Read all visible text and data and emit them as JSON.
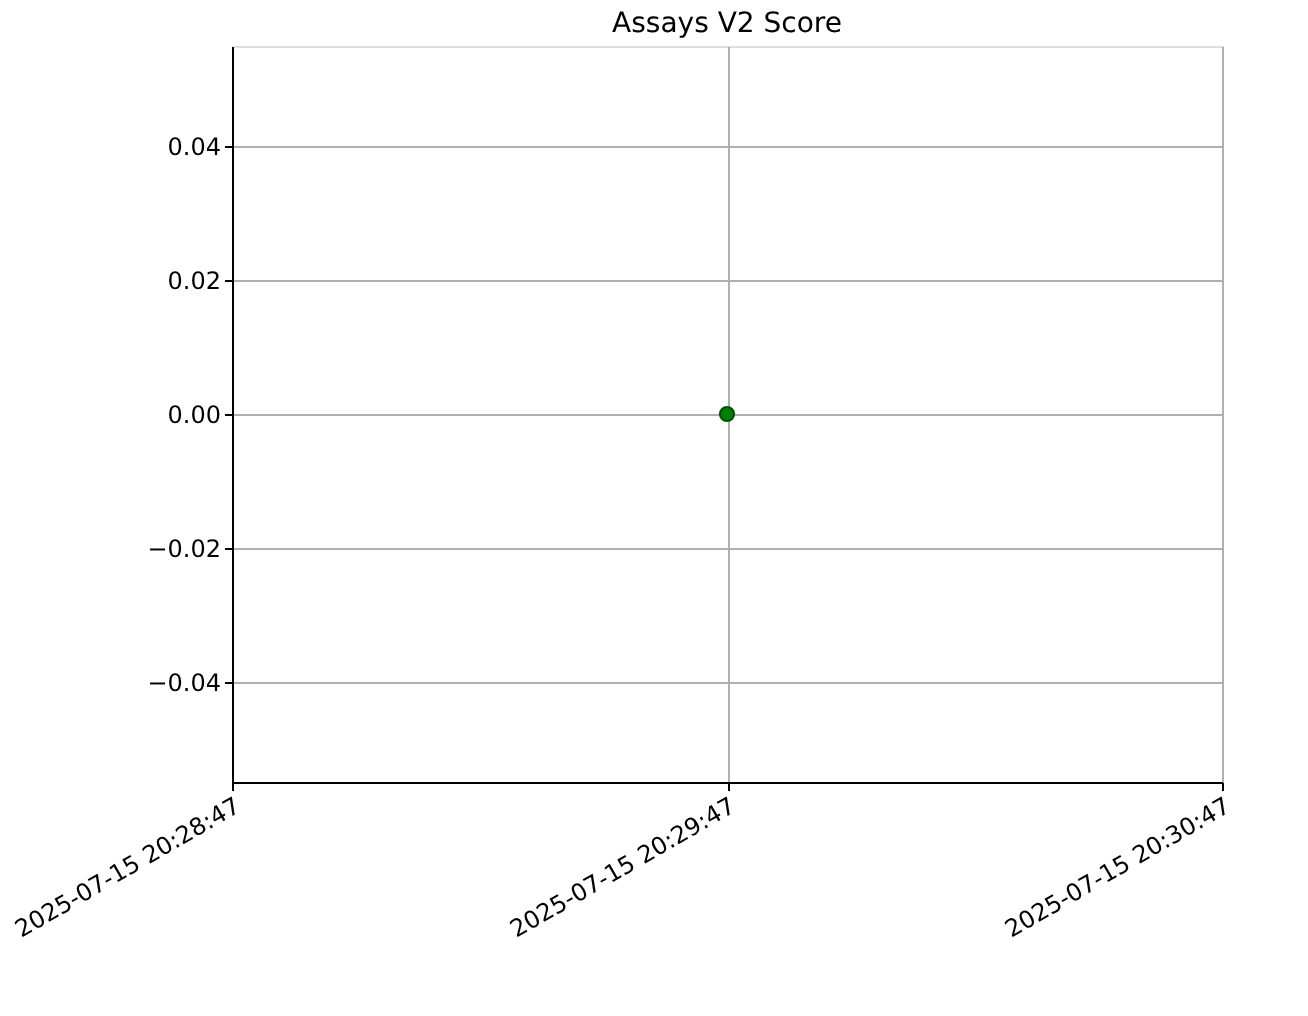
{
  "chart_data": {
    "type": "scatter",
    "title": "Assays V2 Score",
    "x": [
      "2025-07-15T20:29:47"
    ],
    "series": [
      {
        "color": "#008000",
        "values": [
          0
        ]
      }
    ],
    "xlim": [
      "2025-07-15T20:28:47",
      "2025-07-15T20:30:47"
    ],
    "xticks": [
      {
        "value": "2025-07-15T20:28:47",
        "label": "2025-07-15 20:28:47"
      },
      {
        "value": "2025-07-15T20:29:47",
        "label": "2025-07-15 20:29:47"
      },
      {
        "value": "2025-07-15T20:30:47",
        "label": "2025-07-15 20:30:47"
      }
    ],
    "ylim": [
      -0.055,
      0.055
    ],
    "yticks": [
      {
        "value": -0.04,
        "label": "−0.04"
      },
      {
        "value": -0.02,
        "label": "−0.02"
      },
      {
        "value": 0,
        "label": "0.00"
      },
      {
        "value": 0.02,
        "label": "0.02"
      },
      {
        "value": 0.04,
        "label": "0.04"
      }
    ],
    "grid": true,
    "marker": "circle"
  }
}
